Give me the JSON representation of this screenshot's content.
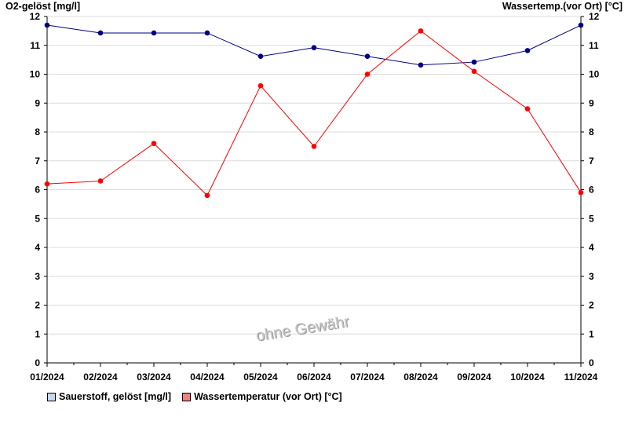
{
  "chart_data": {
    "type": "line",
    "y_left_title": "O2-gelöst [mg/l]",
    "y_right_title": "Wassertemp.(vor Ort) [°C]",
    "categories": [
      "01/2024",
      "02/2024",
      "03/2024",
      "04/2024",
      "05/2024",
      "06/2024",
      "07/2024",
      "08/2024",
      "09/2024",
      "10/2024",
      "11/2024"
    ],
    "x_points": [
      0,
      1,
      2,
      3,
      4,
      5,
      6,
      7,
      8,
      9,
      10
    ],
    "ylim": [
      0,
      12
    ],
    "y_ticks": [
      0,
      1,
      2,
      3,
      4,
      5,
      6,
      7,
      8,
      9,
      10,
      11,
      12
    ],
    "grid": true,
    "legend_position": "bottom",
    "series": [
      {
        "name": "Sauerstoff, gelöst [mg/l]",
        "color": "#000080",
        "legend_color": "#c4d8f5",
        "values": [
          11.7,
          11.43,
          11.43,
          11.43,
          10.62,
          10.92,
          10.62,
          10.32,
          10.42,
          10.82,
          11.7
        ]
      },
      {
        "name": "Wassertemperatur (vor Ort) [°C]",
        "color": "#ff0000",
        "legend_color": "#f08080",
        "values": [
          6.2,
          6.3,
          7.6,
          5.8,
          9.6,
          7.5,
          10.0,
          11.5,
          10.1,
          8.8,
          5.9
        ]
      }
    ],
    "watermark": "ohne Gewähr"
  }
}
